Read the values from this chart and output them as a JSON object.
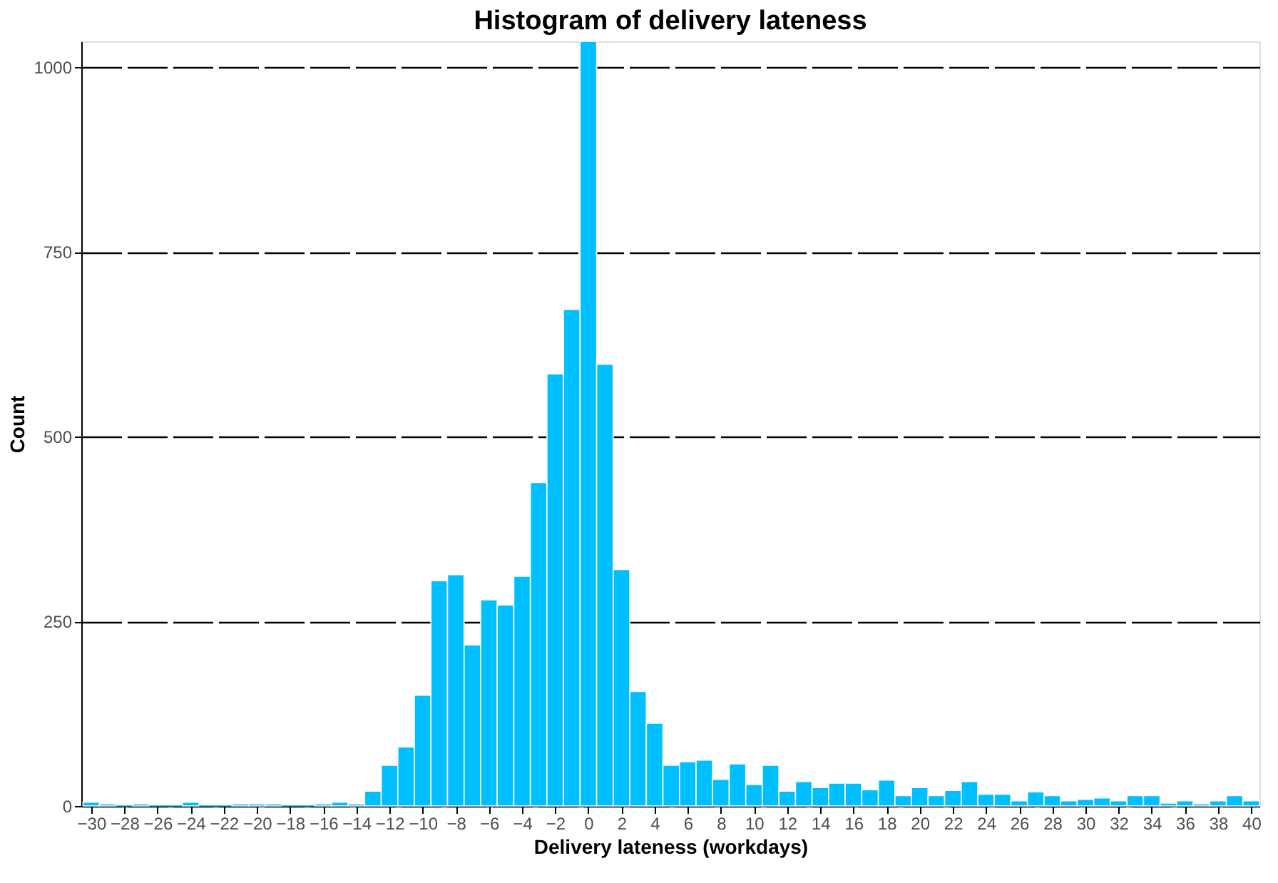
{
  "chart_data": {
    "type": "histogram",
    "title": "Histogram of delivery lateness",
    "xlabel": "Delivery lateness (workdays)",
    "ylabel": "Count",
    "bins": [
      -30.5,
      -29.5,
      -28.5,
      -27.5,
      -26.5,
      -25.5,
      -24.5,
      -23.5,
      -22.5,
      -21.5,
      -20.5,
      -19.5,
      -18.5,
      -17.5,
      -16.5,
      -15.5,
      -14.5,
      -13.5,
      -12.5,
      -11.5,
      -10.5,
      -9.5,
      -8.5,
      -7.5,
      -6.5,
      -5.5,
      -4.5,
      -3.5,
      -2.5,
      -1.5,
      -0.5,
      0.5,
      1.5,
      2.5,
      3.5,
      4.5,
      5.5,
      6.5,
      7.5,
      8.5,
      9.5,
      10.5,
      11.5,
      12.5,
      13.5,
      14.5,
      15.5,
      16.5,
      17.5,
      18.5,
      19.5,
      20.5,
      21.5,
      22.5,
      23.5,
      24.5,
      25.5,
      26.5,
      27.5,
      28.5,
      29.5,
      30.5,
      31.5,
      32.5,
      33.5,
      34.5,
      35.5,
      36.5,
      37.5,
      38.5,
      39.5,
      40.5
    ],
    "values": [
      5,
      3,
      0,
      3,
      0,
      0,
      5,
      0,
      0,
      3,
      3,
      3,
      0,
      0,
      3,
      5,
      3,
      20,
      55,
      80,
      150,
      305,
      313,
      218,
      279,
      272,
      311,
      438,
      585,
      672,
      1035,
      598,
      320,
      155,
      112,
      55,
      60,
      62,
      36,
      57,
      29,
      55,
      20,
      33,
      25,
      31,
      31,
      22,
      35,
      14,
      25,
      14,
      21,
      33,
      16,
      16,
      7,
      19,
      14,
      7,
      9,
      11,
      7,
      14,
      14,
      4,
      7,
      3,
      7,
      14,
      7
    ],
    "color": "#00bfff",
    "xlim": [
      -30.6,
      40.5
    ],
    "xticks": [
      -30,
      -28,
      -26,
      -24,
      -22,
      -20,
      -18,
      -16,
      -14,
      -12,
      -10,
      -8,
      -6,
      -4,
      -2,
      0,
      2,
      4,
      6,
      8,
      10,
      12,
      14,
      16,
      18,
      20,
      22,
      24,
      26,
      28,
      30,
      32,
      34,
      36,
      38,
      40
    ],
    "ylim": [
      0,
      1035
    ],
    "yticks": [
      0,
      250,
      500,
      750,
      1000
    ],
    "grid": "y"
  }
}
